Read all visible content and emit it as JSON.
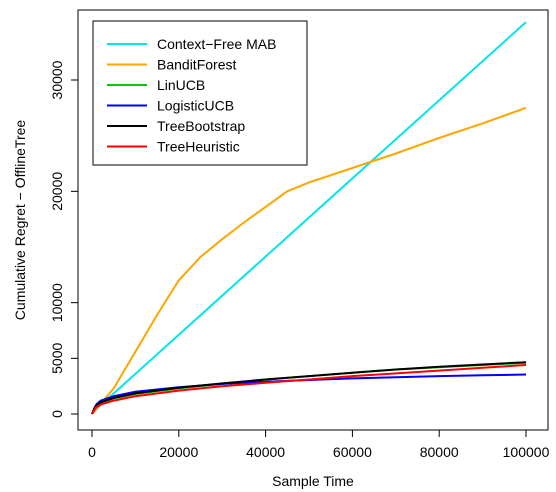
{
  "chart_data": {
    "type": "line",
    "title": "",
    "xlabel": "Sample Time",
    "ylabel": "Cumulative Regret − OfflineTree",
    "xlim": [
      0,
      100000
    ],
    "ylim": [
      0,
      35300
    ],
    "xticks": [
      0,
      20000,
      40000,
      60000,
      80000,
      100000
    ],
    "xtick_labels": [
      "0",
      "20000",
      "40000",
      "60000",
      "80000",
      "100000"
    ],
    "yticks": [
      0,
      5000,
      10000,
      20000,
      30000
    ],
    "ytick_labels": [
      "0",
      "5000",
      "10000",
      "20000",
      "30000"
    ],
    "grid": false,
    "legend_position": "top-left",
    "series": [
      {
        "name": "Context−Free MAB",
        "color": "#00e5ee",
        "points": [
          [
            0,
            0
          ],
          [
            2000,
            800
          ],
          [
            100000,
            35200
          ]
        ]
      },
      {
        "name": "BanditForest",
        "color": "#ffa500",
        "points": [
          [
            0,
            0
          ],
          [
            5000,
            2300
          ],
          [
            10000,
            5600
          ],
          [
            15000,
            8900
          ],
          [
            20000,
            12000
          ],
          [
            25000,
            14100
          ],
          [
            30000,
            15700
          ],
          [
            35000,
            17200
          ],
          [
            40000,
            18600
          ],
          [
            45000,
            20000
          ],
          [
            50000,
            20800
          ],
          [
            60000,
            22100
          ],
          [
            70000,
            23400
          ],
          [
            80000,
            24800
          ],
          [
            90000,
            26100
          ],
          [
            100000,
            27500
          ]
        ]
      },
      {
        "name": "LinUCB",
        "color": "#00cc00",
        "points": [
          [
            0,
            0
          ],
          [
            500,
            400
          ],
          [
            1000,
            700
          ],
          [
            2000,
            1000
          ],
          [
            5000,
            1400
          ],
          [
            10000,
            1800
          ],
          [
            20000,
            2300
          ],
          [
            30000,
            2700
          ],
          [
            40000,
            3100
          ],
          [
            50000,
            3400
          ],
          [
            60000,
            3700
          ],
          [
            70000,
            4000
          ],
          [
            80000,
            4200
          ],
          [
            90000,
            4400
          ],
          [
            100000,
            4600
          ]
        ]
      },
      {
        "name": "LogisticUCB",
        "color": "#0000ff",
        "points": [
          [
            0,
            0
          ],
          [
            500,
            500
          ],
          [
            1000,
            850
          ],
          [
            2000,
            1200
          ],
          [
            5000,
            1600
          ],
          [
            10000,
            2000
          ],
          [
            20000,
            2400
          ],
          [
            30000,
            2700
          ],
          [
            40000,
            2900
          ],
          [
            50000,
            3050
          ],
          [
            60000,
            3200
          ],
          [
            70000,
            3300
          ],
          [
            80000,
            3400
          ],
          [
            90000,
            3480
          ],
          [
            100000,
            3550
          ]
        ]
      },
      {
        "name": "TreeBootstrap",
        "color": "#000000",
        "points": [
          [
            0,
            0
          ],
          [
            500,
            450
          ],
          [
            1000,
            750
          ],
          [
            2000,
            1050
          ],
          [
            5000,
            1450
          ],
          [
            10000,
            1850
          ],
          [
            20000,
            2350
          ],
          [
            30000,
            2750
          ],
          [
            40000,
            3100
          ],
          [
            50000,
            3400
          ],
          [
            60000,
            3700
          ],
          [
            70000,
            4000
          ],
          [
            80000,
            4250
          ],
          [
            90000,
            4450
          ],
          [
            100000,
            4650
          ]
        ]
      },
      {
        "name": "TreeHeuristic",
        "color": "#ff0000",
        "points": [
          [
            0,
            0
          ],
          [
            500,
            350
          ],
          [
            1000,
            600
          ],
          [
            2000,
            850
          ],
          [
            5000,
            1200
          ],
          [
            10000,
            1600
          ],
          [
            20000,
            2100
          ],
          [
            30000,
            2500
          ],
          [
            40000,
            2800
          ],
          [
            50000,
            3100
          ],
          [
            60000,
            3400
          ],
          [
            70000,
            3650
          ],
          [
            80000,
            3900
          ],
          [
            90000,
            4150
          ],
          [
            100000,
            4400
          ]
        ]
      }
    ]
  }
}
